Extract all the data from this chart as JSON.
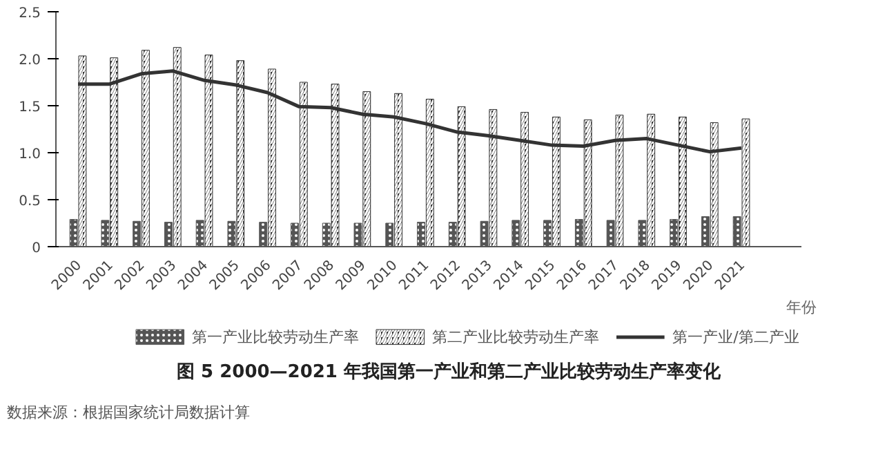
{
  "chart_data": {
    "type": "bar",
    "title": "图 5  2000—2021 年我国第一产业和第二产业比较劳动生产率变化",
    "xlabel": "年份",
    "annotations": [
      "数据来源：根据国家统计局数据计算"
    ],
    "categories": [
      "2000",
      "2001",
      "2002",
      "2003",
      "2004",
      "2005",
      "2006",
      "2007",
      "2008",
      "2009",
      "2010",
      "2011",
      "2012",
      "2013",
      "2014",
      "2015",
      "2016",
      "2017",
      "2018",
      "2019",
      "2020",
      "2021"
    ],
    "series": [
      {
        "name": "第一产业比较劳动生产率",
        "color": "#555555",
        "values": [
          0.29,
          0.28,
          0.27,
          0.26,
          0.28,
          0.27,
          0.26,
          0.25,
          0.25,
          0.25,
          0.25,
          0.26,
          0.26,
          0.27,
          0.28,
          0.28,
          0.29,
          0.28,
          0.28,
          0.29,
          0.32,
          0.32
        ]
      },
      {
        "name": "第二产业比较劳动生产率",
        "color": "#333333",
        "values": [
          2.03,
          2.01,
          2.09,
          2.12,
          2.04,
          1.98,
          1.89,
          1.75,
          1.73,
          1.65,
          1.63,
          1.57,
          1.49,
          1.46,
          1.43,
          1.38,
          1.35,
          1.4,
          1.41,
          1.38,
          1.32,
          1.36
        ]
      },
      {
        "name": "第一产业/第二产业",
        "type": "line",
        "color": "#333333",
        "values": [
          1.73,
          1.73,
          1.84,
          1.87,
          1.77,
          1.72,
          1.64,
          1.49,
          1.48,
          1.41,
          1.38,
          1.31,
          1.22,
          1.18,
          1.13,
          1.08,
          1.07,
          1.13,
          1.15,
          1.08,
          1.01,
          1.05
        ]
      }
    ],
    "ylim": [
      0,
      2.5
    ],
    "yticks": [
      0,
      {
        "value": 0.5,
        "label": "0.5"
      },
      {
        "value": 1,
        "label": "1.0"
      },
      {
        "value": 1.5,
        "label": "1.5"
      },
      {
        "value": 2,
        "label": "2.0"
      },
      {
        "value": 2.5,
        "label": "2.5"
      }
    ],
    "grid": false,
    "legend": "bottom",
    "line_style": "solid",
    "marker": "none"
  }
}
